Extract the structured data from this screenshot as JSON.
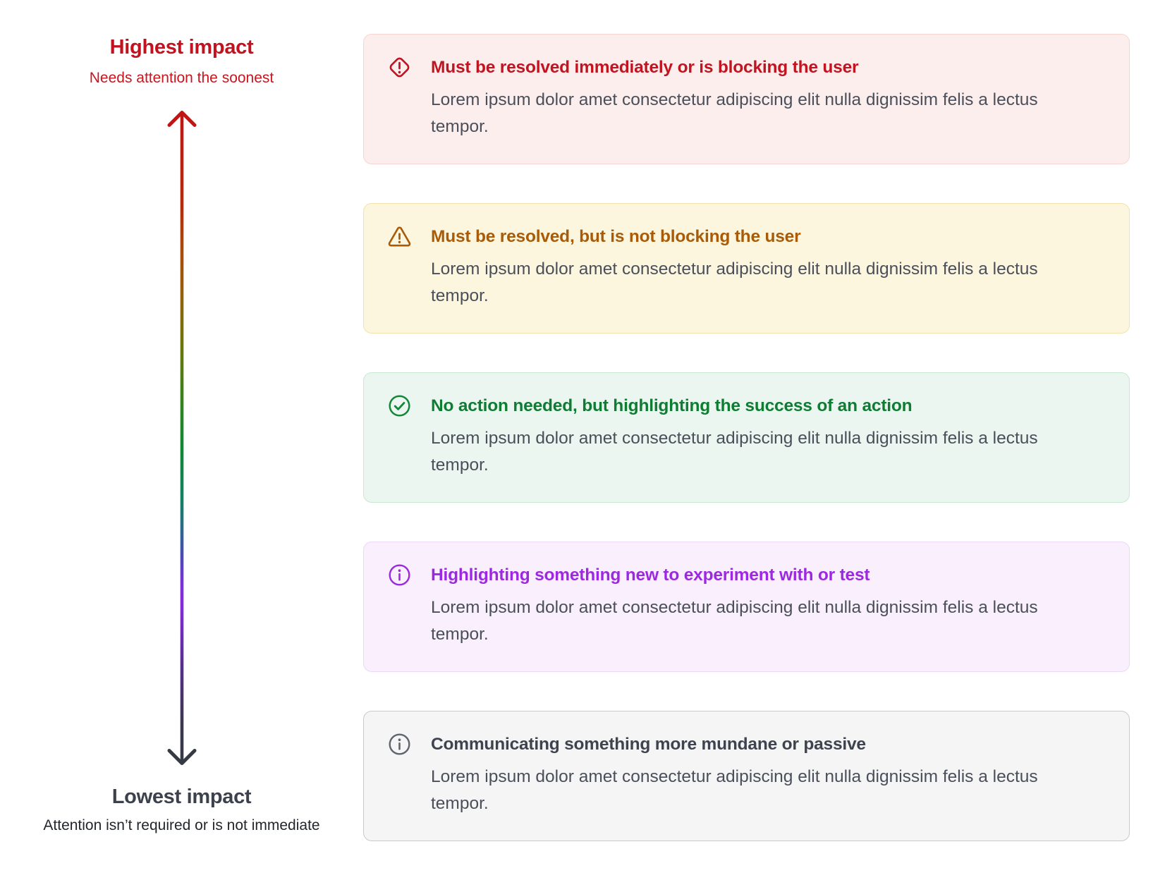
{
  "axis": {
    "top": {
      "title": "Highest impact",
      "subtitle": "Needs attention the soonest",
      "title_color": "#c3121f",
      "subtitle_color": "#c8161f"
    },
    "bottom": {
      "title": "Lowest impact",
      "subtitle": "Attention isn’t required or is not immediate",
      "title_color": "#3c414b",
      "subtitle_color": "#23262b"
    },
    "arrow": {
      "top_color": "#c11414",
      "bottom_color": "#363a44",
      "gradient_stops": [
        {
          "offset": "0%",
          "color": "#c11414"
        },
        {
          "offset": "15%",
          "color": "#b62a0a"
        },
        {
          "offset": "22%",
          "color": "#a84c08"
        },
        {
          "offset": "29%",
          "color": "#926208"
        },
        {
          "offset": "36%",
          "color": "#6d7607"
        },
        {
          "offset": "45%",
          "color": "#31831d"
        },
        {
          "offset": "52%",
          "color": "#0e8736"
        },
        {
          "offset": "59%",
          "color": "#128161"
        },
        {
          "offset": "63%",
          "color": "#256e84"
        },
        {
          "offset": "68%",
          "color": "#4b49b4"
        },
        {
          "offset": "72%",
          "color": "#7b30d8"
        },
        {
          "offset": "75%",
          "color": "#8629de"
        },
        {
          "offset": "85%",
          "color": "#542f85"
        },
        {
          "offset": "93%",
          "color": "#3a3750"
        },
        {
          "offset": "100%",
          "color": "#363a44"
        }
      ]
    }
  },
  "cards": [
    {
      "id": "critical",
      "icon": "alert-diamond-icon",
      "title": "Must be resolved immediately or is blocking the user",
      "body": "Lorem ipsum dolor amet consectetur adipiscing elit nulla dignissim felis a lectus tempor.",
      "colors": {
        "bg": "#fdeeee",
        "border": "#f6d5d1",
        "title_color": "#c11421",
        "icon_color": "#c11421"
      }
    },
    {
      "id": "warning",
      "icon": "alert-triangle-icon",
      "title": "Must be resolved, but is not blocking the user",
      "body": "Lorem ipsum dolor amet consectetur adipiscing elit nulla dignissim felis a lectus tempor.",
      "colors": {
        "bg": "#fdf6df",
        "border": "#f1e2ae",
        "title_color": "#a85b08",
        "icon_color": "#a85b08"
      }
    },
    {
      "id": "success",
      "icon": "check-circle-icon",
      "title": "No action needed, but highlighting the success of an action",
      "body": "Lorem ipsum dolor amet consectetur adipiscing elit nulla dignissim felis a lectus tempor.",
      "colors": {
        "bg": "#eaf6ef",
        "border": "#c8e8d3",
        "title_color": "#0e7d33",
        "icon_color": "#12873a"
      }
    },
    {
      "id": "new-feature",
      "icon": "info-circle-icon",
      "title": "Highlighting something new to experiment with or test",
      "body": "Lorem ipsum dolor amet consectetur adipiscing elit nulla dignissim felis a lectus tempor.",
      "colors": {
        "bg": "#f9effd",
        "border": "#ecd8f8",
        "title_color": "#9d28e1",
        "icon_color": "#9d28e1"
      }
    },
    {
      "id": "neutral",
      "icon": "info-circle-icon",
      "title": "Communicating something more mundane or passive",
      "body": "Lorem ipsum dolor amet consectetur adipiscing elit nulla dignissim felis a lectus tempor.",
      "colors": {
        "bg": "#f5f5f6",
        "border": "#c9cacd",
        "title_color": "#3e434e",
        "icon_color": "#5f646d"
      }
    }
  ]
}
